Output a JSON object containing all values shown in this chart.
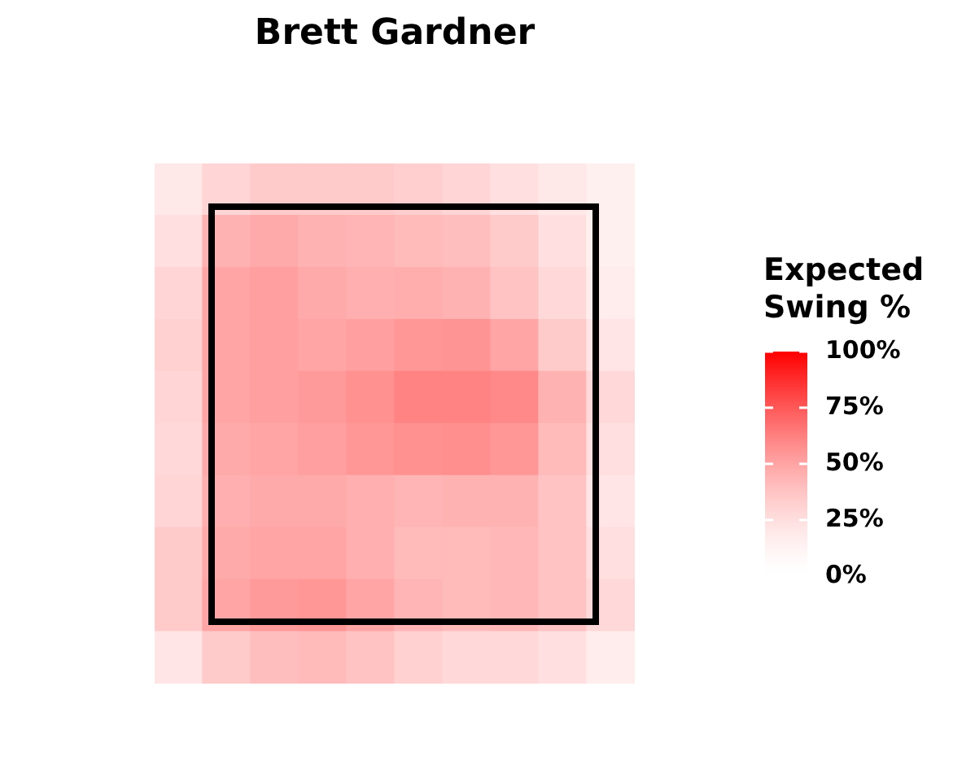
{
  "chart_data": {
    "type": "heatmap",
    "title": "Brett Gardner",
    "clabel": "Expected Swing %",
    "categories": [
      null,
      null,
      null,
      null,
      null,
      null,
      null,
      null,
      null,
      null
    ],
    "y_categories": [
      null,
      null,
      null,
      null,
      null,
      null,
      null,
      null,
      null,
      null
    ],
    "cells": [
      [
        20,
        30,
        35,
        35,
        35,
        33,
        30,
        25,
        20,
        15
      ],
      [
        25,
        45,
        48,
        45,
        44,
        42,
        40,
        35,
        25,
        15
      ],
      [
        30,
        50,
        52,
        48,
        46,
        47,
        45,
        38,
        28,
        18
      ],
      [
        32,
        50,
        52,
        50,
        52,
        55,
        56,
        50,
        35,
        22
      ],
      [
        30,
        50,
        52,
        54,
        57,
        62,
        62,
        60,
        45,
        28
      ],
      [
        28,
        48,
        50,
        52,
        55,
        57,
        58,
        55,
        42,
        25
      ],
      [
        30,
        46,
        48,
        48,
        46,
        44,
        45,
        45,
        38,
        22
      ],
      [
        35,
        48,
        50,
        50,
        46,
        42,
        42,
        43,
        38,
        25
      ],
      [
        35,
        50,
        54,
        55,
        50,
        44,
        42,
        43,
        38,
        28
      ],
      [
        22,
        35,
        40,
        42,
        38,
        32,
        28,
        28,
        25,
        18
      ]
    ],
    "clim": [
      0,
      100
    ],
    "cticks": [
      {
        "value": 0,
        "label": "0%"
      },
      {
        "value": 25,
        "label": "25%"
      },
      {
        "value": 50,
        "label": "50%"
      },
      {
        "value": 75,
        "label": "75%"
      },
      {
        "value": 100,
        "label": "100%"
      }
    ]
  }
}
